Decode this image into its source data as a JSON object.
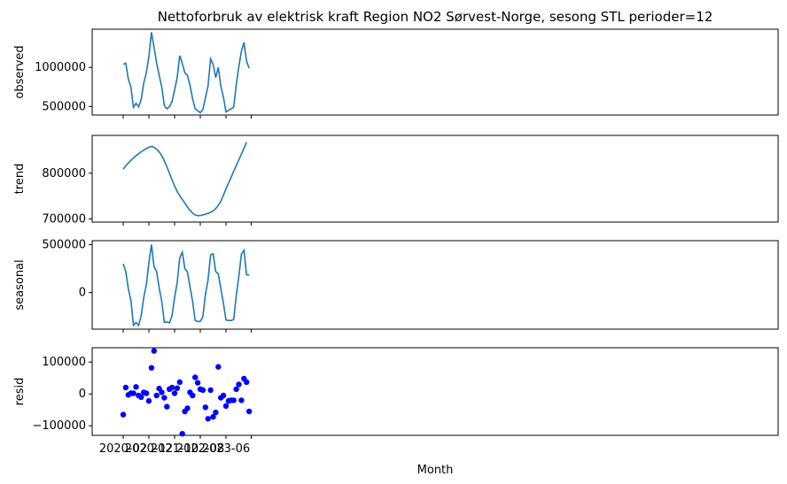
{
  "chart_data": {
    "type": "line",
    "title": "Nettoforbruk av elektrisk kraft Region NO2 Sørvest-Norge, sesong STL perioder=12",
    "xlabel": "Month",
    "x": [
      "2020-02",
      "2020-03",
      "2020-04",
      "2020-05",
      "2020-06",
      "2020-07",
      "2020-08",
      "2020-09",
      "2020-10",
      "2020-11",
      "2020-12",
      "2021-01",
      "2021-02",
      "2021-03",
      "2021-04",
      "2021-05",
      "2021-06",
      "2021-07",
      "2021-08",
      "2021-09",
      "2021-10",
      "2021-11",
      "2021-12",
      "2022-01",
      "2022-02",
      "2022-03",
      "2022-04",
      "2022-05",
      "2022-06",
      "2022-07",
      "2022-08",
      "2022-09",
      "2022-10",
      "2022-11",
      "2022-12",
      "2023-01",
      "2023-02",
      "2023-03",
      "2023-04",
      "2023-05",
      "2023-06",
      "2023-07",
      "2023-08",
      "2023-09",
      "2023-10",
      "2023-11",
      "2023-12",
      "2024-01",
      "2024-02",
      "2024-03"
    ],
    "x_ticks": [
      "2020-02",
      "2020-12",
      "2021-10",
      "2022-08",
      "2023-06"
    ],
    "panels": [
      {
        "ylabel": "observed",
        "kind": "line",
        "ylim": [
          390000,
          1490000
        ],
        "yticks": [
          500000,
          1000000
        ],
        "ytick_labels": [
          "500000",
          "1000000"
        ],
        "values": [
          1040000,
          1055000,
          850000,
          750000,
          490000,
          540000,
          495000,
          590000,
          800000,
          930000,
          1140000,
          1450000,
          1260000,
          1060000,
          900000,
          750000,
          510000,
          470000,
          495000,
          560000,
          710000,
          870000,
          1150000,
          1050000,
          930000,
          900000,
          770000,
          600000,
          470000,
          445000,
          420000,
          460000,
          610000,
          760000,
          1110000,
          1040000,
          870000,
          1000000,
          760000,
          620000,
          430000,
          450000,
          470000,
          490000,
          780000,
          1010000,
          1210000,
          1320000,
          1080000,
          990000
        ]
      },
      {
        "ylabel": "trend",
        "kind": "line",
        "ylim": [
          693000,
          883000
        ],
        "yticks": [
          700000,
          800000
        ],
        "ytick_labels": [
          "700000",
          "800000"
        ],
        "values": [
          809000,
          817000,
          824000,
          830000,
          836000,
          841000,
          846000,
          850000,
          854000,
          857000,
          859000,
          856000,
          851000,
          843000,
          832000,
          818000,
          802000,
          786000,
          771000,
          758000,
          748000,
          739000,
          730000,
          721000,
          714000,
          709000,
          707000,
          707500,
          709000,
          711000,
          713000,
          716000,
          721000,
          728000,
          738000,
          753000,
          768000,
          782000,
          797000,
          811000,
          825000,
          839000,
          853000,
          868000
        ],
        "x_index": [
          0,
          1,
          2,
          3,
          4,
          5,
          6,
          7,
          8,
          9,
          10,
          11,
          12,
          13,
          14,
          15,
          16,
          17,
          18,
          19,
          20,
          21,
          22,
          23,
          24,
          25,
          26,
          27,
          28,
          29,
          30,
          31,
          32,
          33,
          34,
          35,
          36,
          37,
          38,
          39,
          40,
          41,
          42,
          43
        ],
        "x_index_scale": 1.116
      },
      {
        "ylabel": "seasonal",
        "kind": "line",
        "ylim": [
          -380000,
          540000
        ],
        "yticks": [
          0,
          500000
        ],
        "ytick_labels": [
          "0",
          "500000"
        ],
        "values": [
          300000,
          220000,
          40000,
          -80000,
          -340000,
          -310000,
          -340000,
          -240000,
          -50000,
          80000,
          310000,
          500000,
          270000,
          220000,
          50000,
          -90000,
          -310000,
          -305000,
          -315000,
          -240000,
          -50000,
          100000,
          360000,
          420000,
          250000,
          215000,
          60000,
          -90000,
          -290000,
          -300000,
          -300000,
          -250000,
          -20000,
          130000,
          390000,
          405000,
          220000,
          195000,
          40000,
          -110000,
          -285000,
          -290000,
          -290000,
          -280000,
          -30000,
          170000,
          400000,
          440000,
          185000,
          185000
        ]
      },
      {
        "ylabel": "resid",
        "kind": "scatter",
        "color": "#0000ff",
        "ylim": [
          -130000,
          145000
        ],
        "yticks": [
          -100000,
          0,
          100000
        ],
        "ytick_labels": [
          "−100000",
          "0",
          "100000"
        ],
        "values": [
          -65000,
          20000,
          -3000,
          2000,
          2000,
          22000,
          -5000,
          -10000,
          5000,
          2000,
          -22000,
          82000,
          135000,
          -5000,
          17000,
          5000,
          -12000,
          -40000,
          15000,
          20000,
          2000,
          18000,
          37000,
          -125000,
          -55000,
          -45000,
          5000,
          -5000,
          52000,
          35000,
          15000,
          12000,
          -42000,
          -78000,
          12000,
          -72000,
          -58000,
          85000,
          -12000,
          -5000,
          -38000,
          -22000,
          -20000,
          -20000,
          15000,
          30000,
          -20000,
          48000,
          37000,
          -55000
        ]
      }
    ],
    "line_color": "#1f77b4",
    "grid": false
  }
}
